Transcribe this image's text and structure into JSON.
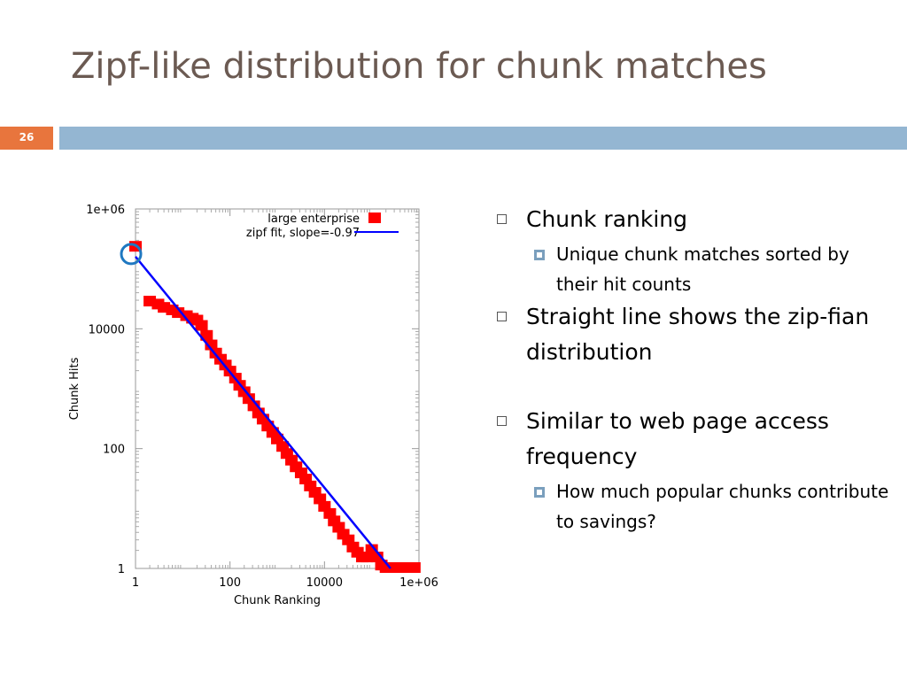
{
  "slide": {
    "title": "Zipf-like distribution for chunk matches",
    "number": "26",
    "accent_color": "#e8753d",
    "bar_color": "#94b6d2"
  },
  "bullets": [
    {
      "level": 1,
      "text": "Chunk ranking"
    },
    {
      "level": 2,
      "text": "Unique chunk matches sorted by their hit counts"
    },
    {
      "level": 1,
      "text": "Straight line shows the zip-fian distribution"
    },
    {
      "level": 1,
      "text": "Similar to web page access frequency"
    },
    {
      "level": 2,
      "text": "How much popular chunks contribute to savings?"
    }
  ],
  "chart_data": {
    "type": "scatter",
    "xlabel": "Chunk Ranking",
    "ylabel": "Chunk Hits",
    "x_scale": "log",
    "y_scale": "log",
    "xlim": [
      1,
      1000000
    ],
    "ylim": [
      1,
      1000000
    ],
    "x_ticks": [
      1,
      100,
      10000,
      1000000
    ],
    "x_tick_labels": [
      "1",
      "100",
      "10000",
      "1e+06"
    ],
    "y_ticks": [
      1,
      100,
      10000,
      1000000
    ],
    "y_tick_labels": [
      "1",
      "100",
      "10000",
      "1e+06"
    ],
    "grid": false,
    "legend_position": "top-right",
    "series": [
      {
        "name": "large enterprise",
        "kind": "points",
        "marker": "square",
        "color": "#ff0000",
        "x": [
          1,
          2,
          3,
          4,
          6,
          8,
          12,
          16,
          20,
          25,
          32,
          40,
          50,
          63,
          80,
          100,
          130,
          160,
          200,
          250,
          320,
          400,
          500,
          630,
          800,
          1000,
          1300,
          1600,
          2000,
          2500,
          3200,
          4000,
          5000,
          6300,
          8000,
          10000,
          13000,
          16000,
          20000,
          25000,
          32000,
          40000,
          50000,
          63000,
          80000,
          100000,
          130000,
          160000,
          200000,
          250000,
          300000,
          400000,
          600000,
          800000
        ],
        "y": [
          230000,
          28000,
          25000,
          22000,
          20000,
          18000,
          16000,
          14500,
          13500,
          11000,
          7500,
          5200,
          3800,
          3000,
          2400,
          1900,
          1450,
          1100,
          860,
          660,
          500,
          380,
          300,
          230,
          180,
          140,
          105,
          80,
          62,
          48,
          38,
          30,
          23,
          18,
          14,
          10.5,
          8,
          6,
          4.7,
          3.6,
          2.9,
          2.2,
          1.8,
          1.5,
          1.5,
          2,
          1.5,
          1.1,
          1,
          1,
          1,
          1,
          1,
          1
        ]
      },
      {
        "name": "zipf fit, slope=-0.97",
        "kind": "line",
        "color": "#0000ff",
        "x": [
          1,
          250000
        ],
        "y": [
          160000,
          1
        ]
      }
    ],
    "highlight": {
      "x": 1,
      "y": 160000,
      "color": "#1f78c1",
      "shape": "circle"
    }
  }
}
